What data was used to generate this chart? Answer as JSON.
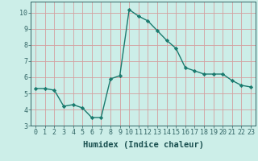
{
  "x": [
    0,
    1,
    2,
    3,
    4,
    5,
    6,
    7,
    8,
    9,
    10,
    11,
    12,
    13,
    14,
    15,
    16,
    17,
    18,
    19,
    20,
    21,
    22,
    23
  ],
  "y": [
    5.3,
    5.3,
    5.2,
    4.2,
    4.3,
    4.1,
    3.5,
    3.5,
    5.9,
    6.1,
    10.2,
    9.8,
    9.5,
    8.9,
    8.3,
    7.8,
    6.6,
    6.4,
    6.2,
    6.2,
    6.2,
    5.8,
    5.5,
    5.4
  ],
  "line_color": "#1a7a6e",
  "marker": "D",
  "marker_size": 2.2,
  "bg_color": "#cceee8",
  "grid_color": "#d4a0a0",
  "xlabel": "Humidex (Indice chaleur)",
  "xlim": [
    -0.5,
    23.5
  ],
  "ylim": [
    3,
    10.7
  ],
  "yticks": [
    3,
    4,
    5,
    6,
    7,
    8,
    9,
    10
  ],
  "xticks": [
    0,
    1,
    2,
    3,
    4,
    5,
    6,
    7,
    8,
    9,
    10,
    11,
    12,
    13,
    14,
    15,
    16,
    17,
    18,
    19,
    20,
    21,
    22,
    23
  ],
  "tick_fontsize": 6.0,
  "xlabel_fontsize": 7.5,
  "line_width": 1.0,
  "spine_color": "#336666",
  "tick_color": "#336666",
  "label_color": "#1a5050"
}
